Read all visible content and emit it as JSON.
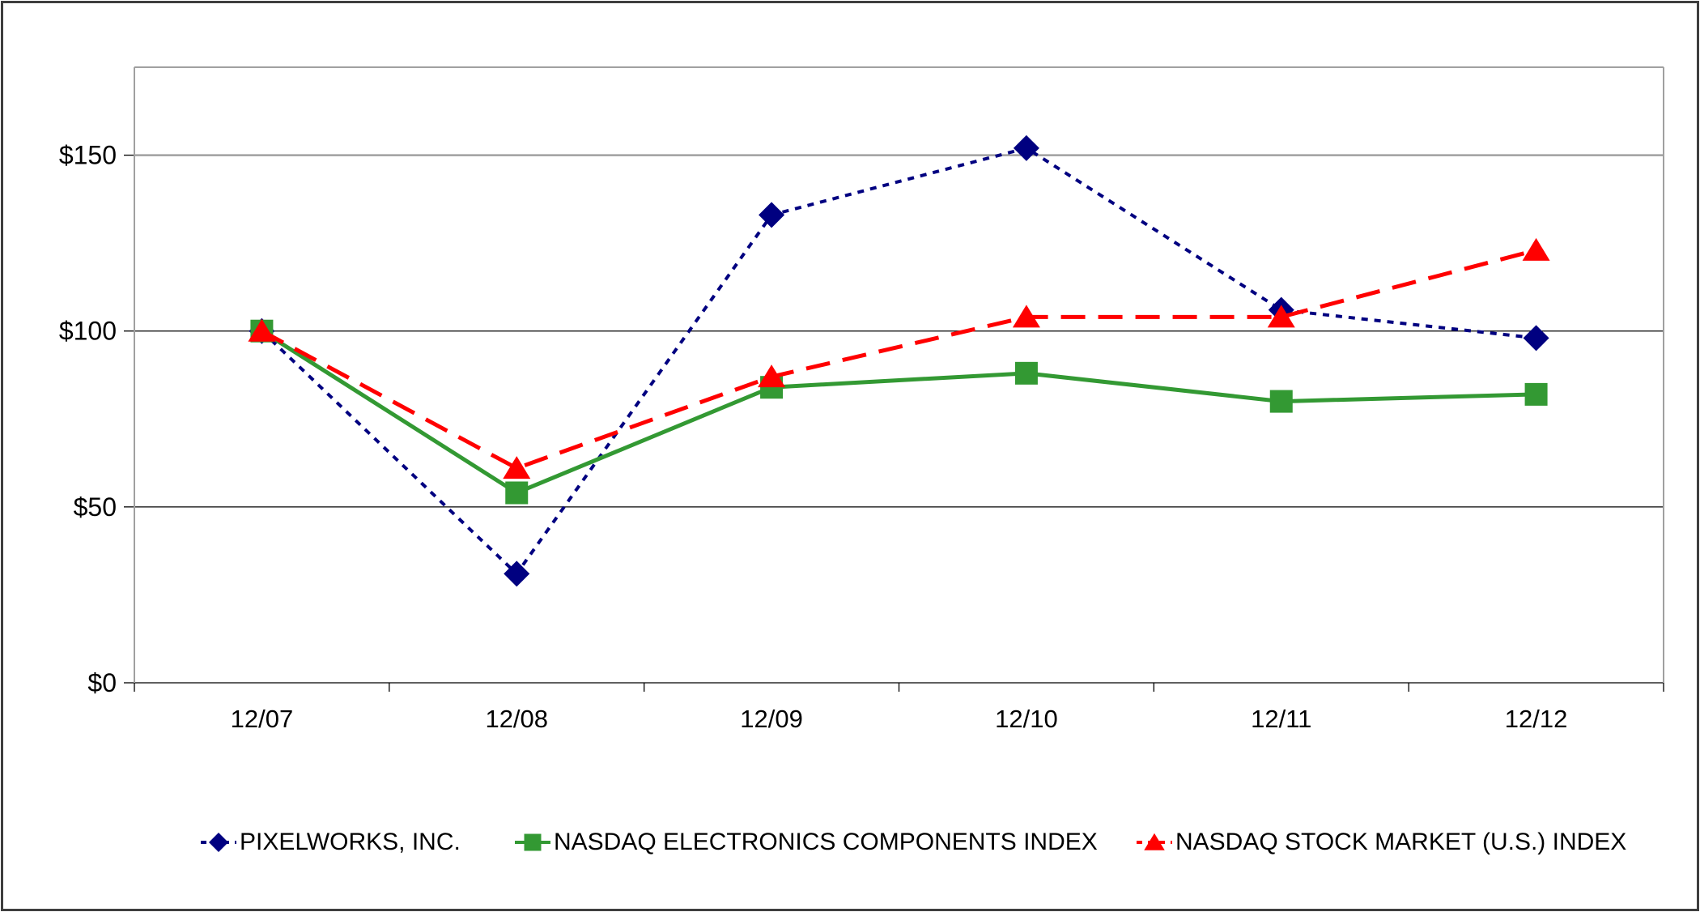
{
  "chart_data": {
    "type": "line",
    "title": "",
    "xlabel": "",
    "ylabel": "",
    "categories": [
      "12/07",
      "12/08",
      "12/09",
      "12/10",
      "12/11",
      "12/12"
    ],
    "series": [
      {
        "name": "PIXELWORKS, INC.",
        "color": "#000080",
        "marker": "diamond",
        "line_style": "dotted",
        "values": [
          100,
          31,
          133,
          152,
          106,
          98
        ]
      },
      {
        "name": "NASDAQ ELECTRONICS COMPONENTS INDEX",
        "color": "#339933",
        "marker": "square",
        "line_style": "solid",
        "values": [
          100,
          54,
          84,
          88,
          80,
          82
        ]
      },
      {
        "name": "NASDAQ STOCK MARKET (U.S.) INDEX",
        "color": "#FF0000",
        "marker": "triangle",
        "line_style": "dashed",
        "values": [
          100,
          61,
          87,
          104,
          104,
          123
        ]
      }
    ],
    "ylim": [
      0,
      175
    ],
    "yticks": [
      {
        "value": 0,
        "label": "$0"
      },
      {
        "value": 50,
        "label": "$50"
      },
      {
        "value": 100,
        "label": "$100"
      },
      {
        "value": 150,
        "label": "$150"
      }
    ],
    "grid": true,
    "legend_position": "bottom",
    "colors": {
      "axis_border": "#a0a0a0",
      "major_gridline": "#a0a0a0",
      "minor_gridline": "#000000",
      "tick": "#000000",
      "label": "#000000"
    }
  }
}
